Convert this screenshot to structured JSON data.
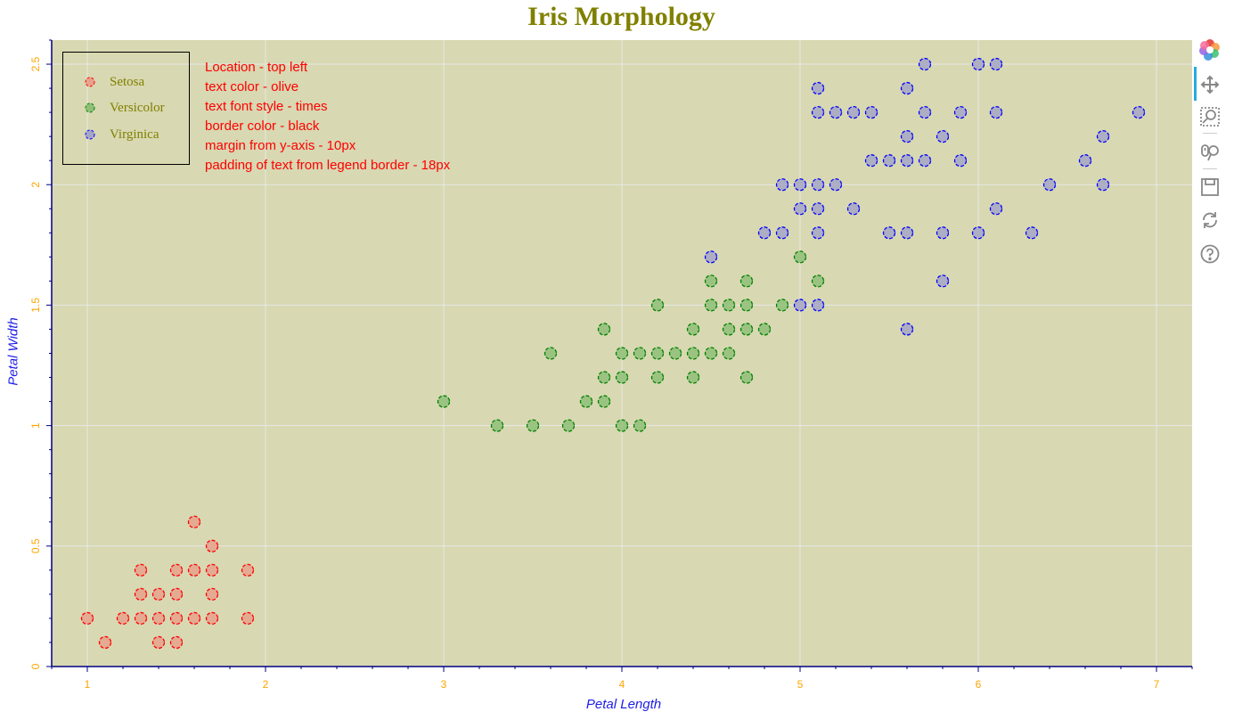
{
  "chart_data": {
    "type": "scatter",
    "title": "Iris Morphology",
    "xlabel": "Petal Length",
    "ylabel": "Petal Width",
    "xlim": [
      0.8,
      7.2
    ],
    "ylim": [
      0,
      2.6
    ],
    "xticks": [
      "1",
      "2",
      "3",
      "4",
      "5",
      "6",
      "7"
    ],
    "yticks": [
      "0",
      "0.5",
      "1",
      "1.5",
      "2",
      "2.5"
    ],
    "colors": {
      "background": "#d8d8b2",
      "grid": "#e8e8e8",
      "title": "#808000",
      "tick_labels": "#ffa500",
      "axis_labels": "#1e1ee6",
      "axis_line": "#000080"
    },
    "legend": {
      "location": "top-left",
      "border_color": "#000000",
      "text_color": "#808000"
    },
    "series": [
      {
        "name": "Setosa",
        "fill": "#e6a28c",
        "line": "#ff0000",
        "points": [
          [
            1.0,
            0.2
          ],
          [
            1.1,
            0.1
          ],
          [
            1.2,
            0.2
          ],
          [
            1.3,
            0.2
          ],
          [
            1.3,
            0.3
          ],
          [
            1.3,
            0.4
          ],
          [
            1.4,
            0.1
          ],
          [
            1.4,
            0.2
          ],
          [
            1.4,
            0.3
          ],
          [
            1.5,
            0.1
          ],
          [
            1.5,
            0.2
          ],
          [
            1.5,
            0.3
          ],
          [
            1.5,
            0.4
          ],
          [
            1.6,
            0.2
          ],
          [
            1.6,
            0.4
          ],
          [
            1.6,
            0.6
          ],
          [
            1.7,
            0.2
          ],
          [
            1.7,
            0.3
          ],
          [
            1.7,
            0.4
          ],
          [
            1.7,
            0.5
          ],
          [
            1.9,
            0.2
          ],
          [
            1.9,
            0.4
          ]
        ]
      },
      {
        "name": "Versicolor",
        "fill": "#8fbf78",
        "line": "#008000",
        "points": [
          [
            3.0,
            1.1
          ],
          [
            3.3,
            1.0
          ],
          [
            3.5,
            1.0
          ],
          [
            3.6,
            1.3
          ],
          [
            3.7,
            1.0
          ],
          [
            3.8,
            1.1
          ],
          [
            3.9,
            1.1
          ],
          [
            3.9,
            1.2
          ],
          [
            3.9,
            1.4
          ],
          [
            4.0,
            1.0
          ],
          [
            4.0,
            1.2
          ],
          [
            4.0,
            1.3
          ],
          [
            4.1,
            1.0
          ],
          [
            4.1,
            1.3
          ],
          [
            4.2,
            1.2
          ],
          [
            4.2,
            1.3
          ],
          [
            4.2,
            1.5
          ],
          [
            4.3,
            1.3
          ],
          [
            4.4,
            1.2
          ],
          [
            4.4,
            1.3
          ],
          [
            4.4,
            1.4
          ],
          [
            4.5,
            1.3
          ],
          [
            4.5,
            1.5
          ],
          [
            4.5,
            1.6
          ],
          [
            4.6,
            1.3
          ],
          [
            4.6,
            1.4
          ],
          [
            4.6,
            1.5
          ],
          [
            4.7,
            1.2
          ],
          [
            4.7,
            1.4
          ],
          [
            4.7,
            1.5
          ],
          [
            4.7,
            1.6
          ],
          [
            4.8,
            1.4
          ],
          [
            4.9,
            1.5
          ],
          [
            5.0,
            1.7
          ],
          [
            5.1,
            1.6
          ]
        ]
      },
      {
        "name": "Virginica",
        "fill": "#a6a6c6",
        "line": "#0000ff",
        "points": [
          [
            4.5,
            1.7
          ],
          [
            4.8,
            1.8
          ],
          [
            4.9,
            1.8
          ],
          [
            4.9,
            2.0
          ],
          [
            5.0,
            1.5
          ],
          [
            5.0,
            1.9
          ],
          [
            5.0,
            2.0
          ],
          [
            5.1,
            1.5
          ],
          [
            5.1,
            1.8
          ],
          [
            5.1,
            1.9
          ],
          [
            5.1,
            2.0
          ],
          [
            5.1,
            2.3
          ],
          [
            5.1,
            2.4
          ],
          [
            5.2,
            2.0
          ],
          [
            5.2,
            2.3
          ],
          [
            5.3,
            1.9
          ],
          [
            5.3,
            2.3
          ],
          [
            5.4,
            2.1
          ],
          [
            5.4,
            2.3
          ],
          [
            5.5,
            1.8
          ],
          [
            5.5,
            2.1
          ],
          [
            5.6,
            1.4
          ],
          [
            5.6,
            1.8
          ],
          [
            5.6,
            2.1
          ],
          [
            5.6,
            2.2
          ],
          [
            5.6,
            2.4
          ],
          [
            5.7,
            2.1
          ],
          [
            5.7,
            2.3
          ],
          [
            5.7,
            2.5
          ],
          [
            5.8,
            1.6
          ],
          [
            5.8,
            1.8
          ],
          [
            5.8,
            2.2
          ],
          [
            5.9,
            2.1
          ],
          [
            5.9,
            2.3
          ],
          [
            6.0,
            1.8
          ],
          [
            6.0,
            2.5
          ],
          [
            6.1,
            1.9
          ],
          [
            6.1,
            2.3
          ],
          [
            6.1,
            2.5
          ],
          [
            6.3,
            1.8
          ],
          [
            6.4,
            2.0
          ],
          [
            6.6,
            2.1
          ],
          [
            6.7,
            2.0
          ],
          [
            6.7,
            2.2
          ],
          [
            6.9,
            2.3
          ]
        ]
      }
    ]
  },
  "annotation": {
    "lines": [
      "Location - top left",
      "text color - olive",
      "text font style - times",
      "border color - black",
      "margin from y-axis - 10px",
      "padding of text from legend border - 18px"
    ]
  },
  "toolbar": {
    "tools": [
      {
        "name": "bokeh-logo-icon"
      },
      {
        "name": "pan-tool-icon"
      },
      {
        "name": "box-zoom-tool-icon"
      },
      {
        "name": "wheel-zoom-tool-icon"
      },
      {
        "name": "save-tool-icon"
      },
      {
        "name": "reset-tool-icon"
      },
      {
        "name": "help-tool-icon"
      }
    ]
  }
}
